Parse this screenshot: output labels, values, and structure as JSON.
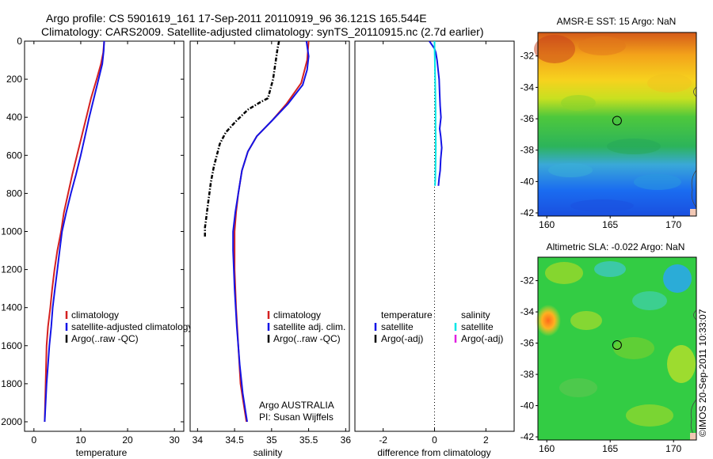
{
  "title": {
    "line1": "Argo profile: CS 5901619_161 17-Sep-2011 20110919_96 36.121S 165.544E",
    "line2": "Climatology: CARS2009. Satellite-adjusted climatology: synTS_20110915.nc (2.7d earlier)"
  },
  "watermark": "©IMOS 20-Sep-2011 10:33:07",
  "colors": {
    "climatology": "#d42020",
    "satellite": "#1414e6",
    "argo": "#000000",
    "salinity_satellite": "#00e6e6",
    "salinity_argo": "#e020e0"
  },
  "chart_data": [
    {
      "id": "temperature",
      "type": "line",
      "xlabel": "temperature",
      "ylabel": "",
      "xlim": [
        -2,
        32
      ],
      "ylim": [
        2050,
        0
      ],
      "xticks": [
        0,
        10,
        20,
        30
      ],
      "yticks": [
        0,
        200,
        400,
        600,
        800,
        1000,
        1200,
        1400,
        1600,
        1800,
        2000
      ],
      "grid": false,
      "legend_position": "lower-right",
      "series": [
        {
          "name": "climatology",
          "color": "#d42020",
          "dash": "none",
          "x": [
            15,
            14.8,
            14.3,
            13.4,
            12.2,
            11.2,
            10.2,
            9.2,
            8.2,
            7.3,
            6.4,
            5.8,
            5.0,
            4.4,
            3.9,
            3.5,
            3.0,
            2.7,
            2.5,
            2.3
          ],
          "y": [
            0,
            60,
            120,
            200,
            300,
            400,
            500,
            600,
            700,
            800,
            900,
            1000,
            1100,
            1200,
            1300,
            1400,
            1500,
            1600,
            1800,
            2000
          ]
        },
        {
          "name": "satellite-adjusted climatology",
          "color": "#1414e6",
          "dash": "none",
          "x": [
            15,
            14.9,
            14.6,
            13.8,
            12.8,
            11.8,
            10.9,
            10.0,
            9.0,
            7.9,
            6.9,
            6.0,
            5.5,
            5.0,
            4.5,
            4.0,
            3.7,
            3.3,
            3.0,
            2.7,
            2.4,
            2.3
          ],
          "y": [
            0,
            50,
            120,
            200,
            300,
            400,
            500,
            600,
            700,
            800,
            900,
            1000,
            1100,
            1200,
            1300,
            1400,
            1500,
            1600,
            1700,
            1800,
            1950,
            2000
          ]
        },
        {
          "name": "Argo(..raw -QC)",
          "color": "#000000",
          "dash": "dash-dot",
          "x": [],
          "y": []
        }
      ]
    },
    {
      "id": "salinity",
      "type": "line",
      "xlabel": "salinity",
      "ylabel": "",
      "xlim": [
        33.9,
        36.05
      ],
      "ylim": [
        2050,
        0
      ],
      "xticks": [
        34,
        34.5,
        35,
        35.5,
        36
      ],
      "yticks": [],
      "grid": false,
      "legend_position": "lower-right",
      "series": [
        {
          "name": "climatology",
          "color": "#d42020",
          "dash": "none",
          "x": [
            35.5,
            35.48,
            35.4,
            35.2,
            35.0,
            34.8,
            34.68,
            34.6,
            34.55,
            34.52,
            34.5,
            34.5,
            34.52,
            34.55,
            34.58,
            34.62,
            34.66
          ],
          "y": [
            0,
            100,
            220,
            330,
            420,
            500,
            580,
            680,
            800,
            900,
            1000,
            1200,
            1400,
            1600,
            1800,
            1900,
            2000
          ]
        },
        {
          "name": "satellite adj. clim.",
          "color": "#1414e6",
          "dash": "none",
          "x": [
            35.47,
            35.5,
            35.48,
            35.42,
            35.22,
            35.0,
            34.8,
            34.68,
            34.6,
            34.55,
            34.51,
            34.48,
            34.48,
            34.5,
            34.53,
            34.57,
            34.61,
            34.65,
            34.67
          ],
          "y": [
            0,
            80,
            150,
            230,
            330,
            420,
            500,
            580,
            680,
            800,
            900,
            1000,
            1100,
            1300,
            1500,
            1700,
            1850,
            1950,
            2000
          ]
        },
        {
          "name": "Argo(..raw -QC)",
          "color": "#000000",
          "dash": "dash-dot",
          "x": [
            35.1,
            35.08,
            35.05,
            35.02,
            34.95,
            34.85,
            34.68,
            34.52,
            34.38,
            34.3,
            34.26,
            34.22,
            34.18,
            34.16,
            34.14,
            34.12,
            34.1,
            34.1
          ],
          "y": [
            0,
            40,
            120,
            200,
            300,
            320,
            360,
            420,
            480,
            540,
            600,
            660,
            740,
            800,
            860,
            920,
            980,
            1030
          ]
        }
      ],
      "annotation": {
        "line1": "Argo AUSTRALIA",
        "line2": "PI: Susan Wijffels"
      }
    },
    {
      "id": "difference",
      "type": "line",
      "xlabel": "difference from climatology",
      "ylabel": "",
      "xlim": [
        -3.1,
        3.1
      ],
      "ylim": [
        2050,
        0
      ],
      "xticks": [
        -2,
        0,
        2
      ],
      "yticks": [],
      "grid": false,
      "zero_line": true,
      "legend_position": "lower",
      "legend_groups": [
        "temperature",
        "salinity"
      ],
      "series": [
        {
          "group": "temperature",
          "name": "satellite",
          "color": "#1414e6",
          "dash": "none",
          "x": [
            -0.2,
            -0.1,
            0.0,
            0.05,
            0.1,
            0.18,
            0.2,
            0.22,
            0.25,
            0.2,
            0.24,
            0.28,
            0.24,
            0.22,
            0.18,
            0.15
          ],
          "y": [
            0,
            20,
            40,
            60,
            100,
            200,
            280,
            340,
            400,
            460,
            500,
            560,
            620,
            680,
            720,
            760
          ]
        },
        {
          "group": "temperature",
          "name": "Argo(-adj)",
          "color": "#000000",
          "dash": "none",
          "x": [],
          "y": []
        },
        {
          "group": "salinity",
          "name": "satellite",
          "color": "#00e6e6",
          "dash": "none",
          "x": [
            0.0,
            0.0,
            0.01,
            0.02,
            0.03,
            0.04,
            0.04,
            0.05,
            0.04,
            0.03,
            0.02
          ],
          "y": [
            0,
            30,
            80,
            150,
            250,
            350,
            450,
            550,
            650,
            720,
            760
          ]
        },
        {
          "group": "salinity",
          "name": "Argo(-adj)",
          "color": "#e020e0",
          "dash": "none",
          "x": [],
          "y": []
        }
      ]
    },
    {
      "id": "sst_map",
      "type": "heatmap",
      "title": "AMSR-E SST: 15 Argo: NaN",
      "xlim": [
        159.3,
        171.8
      ],
      "ylim": [
        -42.2,
        -30.5
      ],
      "xticks": [
        160,
        165,
        170
      ],
      "yticks": [
        -32,
        -34,
        -36,
        -38,
        -40,
        -42
      ],
      "marker": {
        "lon": 165.544,
        "lat": -36.121
      }
    },
    {
      "id": "sla_map",
      "type": "heatmap",
      "title": "Altimetric SLA: -0.022 Argo: NaN",
      "xlim": [
        159.3,
        171.8
      ],
      "ylim": [
        -42.2,
        -30.5
      ],
      "xticks": [
        160,
        165,
        170
      ],
      "yticks": [
        -32,
        -34,
        -36,
        -38,
        -40,
        -42
      ],
      "marker": {
        "lon": 165.544,
        "lat": -36.121
      }
    }
  ]
}
